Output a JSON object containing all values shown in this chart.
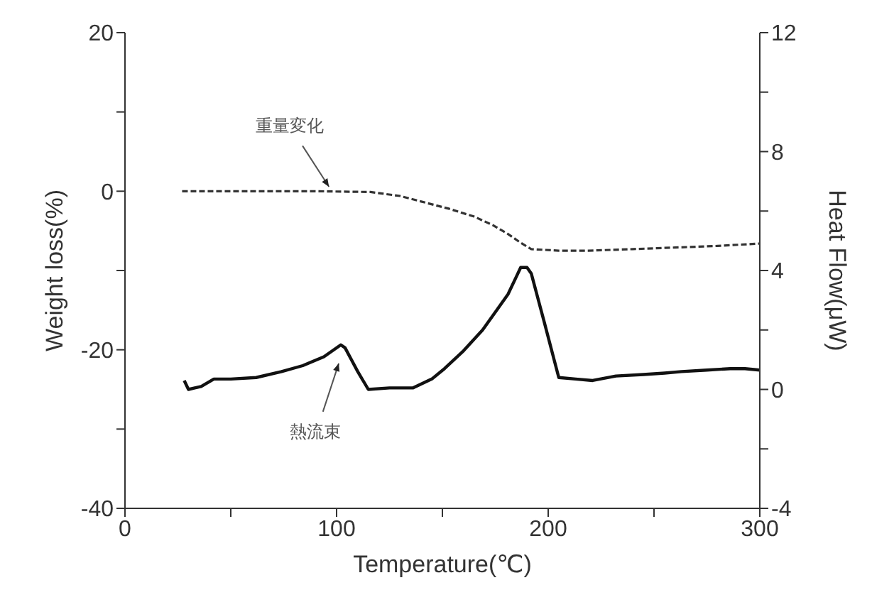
{
  "chart_data": {
    "type": "line",
    "xlabel": "Temperature(℃)",
    "ylabel": "Weight loss(%)",
    "y2label": "Heat Flow(μW)",
    "xlim": [
      0,
      300
    ],
    "xticks": [
      0,
      {
        "value": 50,
        "label": null
      },
      100,
      {
        "value": 150,
        "label": null
      },
      200,
      {
        "value": 250,
        "label": null
      },
      300
    ],
    "ylim": [
      -40,
      20
    ],
    "yticks": [
      -40,
      {
        "value": -30,
        "label": null
      },
      -20,
      {
        "value": -10,
        "label": null
      },
      0,
      {
        "value": 10,
        "label": null
      },
      20
    ],
    "y2lim": [
      -4,
      12
    ],
    "y2ticks": [
      -4,
      {
        "value": -2,
        "label": null
      },
      0,
      {
        "value": 2,
        "label": null
      },
      4,
      {
        "value": 6,
        "label": null
      },
      8,
      {
        "value": 10,
        "label": null
      },
      12
    ],
    "marker": "none",
    "series": [
      {
        "color": "#333333",
        "line_style": "dashed",
        "x": [
          27,
          60,
          90,
          116,
          130,
          140,
          153,
          165,
          174,
          181,
          187,
          192,
          205,
          219,
          240,
          260,
          280,
          300
        ],
        "values": [
          0,
          0,
          0,
          -0.1,
          -0.6,
          -1.3,
          -2.2,
          -3.2,
          -4.3,
          -5.4,
          -6.5,
          -7.3,
          -7.5,
          -7.5,
          -7.3,
          -7.1,
          -6.9,
          -6.6
        ]
      },
      {
        "color": "#111111",
        "line_style": "solid",
        "axis": "y2",
        "x": [
          28,
          30,
          33,
          36,
          42,
          50,
          62,
          74,
          84,
          94,
          102,
          104,
          110,
          115,
          125,
          136,
          145,
          151,
          160,
          169,
          176,
          181,
          185,
          187,
          190,
          192,
          198,
          205,
          213,
          221,
          232,
          245,
          255,
          263,
          275,
          286,
          293,
          300
        ],
        "values": [
          0.3,
          0.0,
          0.05,
          0.1,
          0.35,
          0.35,
          0.4,
          0.6,
          0.8,
          1.1,
          1.5,
          1.4,
          0.6,
          0.0,
          0.05,
          0.05,
          0.35,
          0.7,
          1.3,
          2.0,
          2.7,
          3.2,
          3.8,
          4.1,
          4.1,
          3.9,
          2.3,
          0.4,
          0.35,
          0.3,
          0.45,
          0.5,
          0.55,
          0.6,
          0.65,
          0.7,
          0.7,
          0.65
        ]
      }
    ],
    "annotations": [
      {
        "text": "重量変化",
        "x": 98,
        "y": 0
      },
      {
        "text": "熱流束",
        "x": 102,
        "y": -21
      }
    ]
  }
}
